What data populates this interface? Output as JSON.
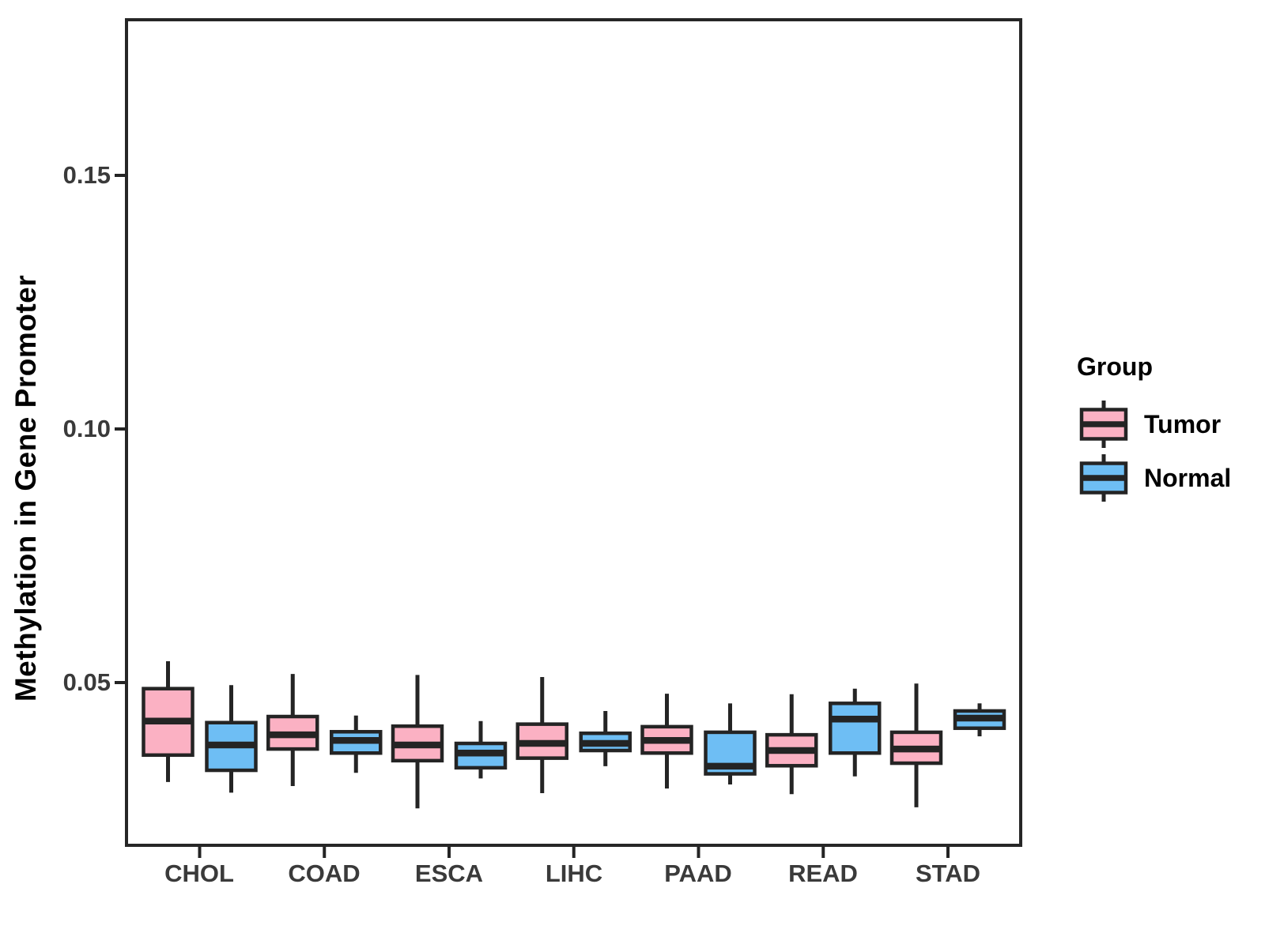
{
  "chart_data": {
    "type": "boxplot",
    "title": "",
    "xlabel": "",
    "ylabel": "Methylation in Gene Promoter",
    "categories": [
      "CHOL",
      "COAD",
      "ESCA",
      "LIHC",
      "PAAD",
      "READ",
      "STAD"
    ],
    "yticks": [
      0.05,
      0.1,
      0.15
    ],
    "ytick_labels": [
      "0.05",
      "0.10",
      "0.15"
    ],
    "ylim": [
      0.018,
      0.18
    ],
    "grid": false,
    "legend": {
      "title": "Group",
      "position": "right",
      "entries": [
        {
          "label": "Tumor",
          "color": "#FBB1C3"
        },
        {
          "label": "Normal",
          "color": "#6EBEF4"
        }
      ]
    },
    "stat_order": [
      "whisker_low",
      "q1",
      "median",
      "q3",
      "whisker_high"
    ],
    "series": [
      {
        "name": "Tumor",
        "color": "#FBB1C3",
        "stats": [
          [
            0.0304,
            0.0357,
            0.0424,
            0.0488,
            0.0542
          ],
          [
            0.0296,
            0.0369,
            0.0397,
            0.0433,
            0.0517
          ],
          [
            0.0252,
            0.0346,
            0.0377,
            0.0414,
            0.0515
          ],
          [
            0.0282,
            0.0351,
            0.038,
            0.0418,
            0.0511
          ],
          [
            0.0291,
            0.0361,
            0.0386,
            0.0413,
            0.0478
          ],
          [
            0.028,
            0.0336,
            0.0366,
            0.0397,
            0.0477
          ],
          [
            0.0254,
            0.0341,
            0.0369,
            0.0402,
            0.0498
          ]
        ]
      },
      {
        "name": "Normal",
        "color": "#6EBEF4",
        "stats": [
          [
            0.0283,
            0.0327,
            0.0377,
            0.0421,
            0.0495
          ],
          [
            0.0322,
            0.0361,
            0.0386,
            0.0403,
            0.0435
          ],
          [
            0.0311,
            0.0332,
            0.0361,
            0.038,
            0.0424
          ],
          [
            0.0335,
            0.0366,
            0.038,
            0.04,
            0.0444
          ],
          [
            0.0299,
            0.032,
            0.0335,
            0.0402,
            0.0459
          ],
          [
            0.0315,
            0.0361,
            0.0428,
            0.0459,
            0.0488
          ],
          [
            0.0394,
            0.041,
            0.043,
            0.0444,
            0.0459
          ]
        ]
      }
    ],
    "style_colors": {
      "box_stroke": "#242424",
      "panel_border": "#262626",
      "tick_text": "#3a3a3a",
      "title_text": "#000000"
    }
  }
}
